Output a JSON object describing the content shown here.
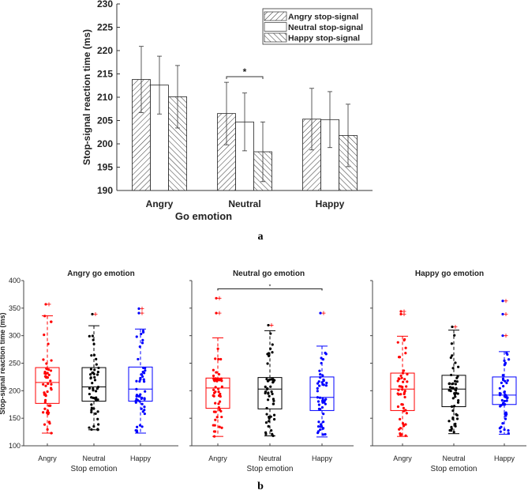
{
  "chart_data": [
    {
      "type": "bar",
      "label": "a",
      "xlabel": "Go emotion",
      "ylabel": "Stop-signal reaction time (ms)",
      "ylim": [
        190,
        230
      ],
      "yticks": [
        190,
        195,
        200,
        205,
        210,
        215,
        220,
        225,
        230
      ],
      "categories": [
        "Angry",
        "Neutral",
        "Happy"
      ],
      "legend_position": "top-right",
      "series": [
        {
          "name": "Angry stop-signal",
          "pattern": "hatch-forward",
          "values": [
            213.8,
            206.5,
            205.3
          ],
          "errors": [
            7.1,
            6.7,
            6.6
          ]
        },
        {
          "name": "Neutral stop-signal",
          "pattern": "plain",
          "values": [
            212.6,
            204.7,
            205.2
          ],
          "errors": [
            6.2,
            6.2,
            6.0
          ]
        },
        {
          "name": "Happy stop-signal",
          "pattern": "hatch-back",
          "values": [
            210.1,
            198.3,
            201.8
          ],
          "errors": [
            6.7,
            6.4,
            6.7
          ]
        }
      ],
      "annotations": [
        {
          "text": "*",
          "between": [
            "Neutral: Angry stop-signal",
            "Neutral: Happy stop-signal"
          ]
        }
      ]
    },
    {
      "type": "box",
      "label": "b",
      "ylabel": "Stop-signal reaction time (ms)",
      "xlabel": "Stop emotion",
      "ylim": [
        100,
        400
      ],
      "yticks": [
        100,
        150,
        200,
        250,
        300,
        350,
        400
      ],
      "categories": [
        "Angry",
        "Neutral",
        "Happy"
      ],
      "colors": [
        "#ff0000",
        "#000000",
        "#0000ff"
      ],
      "panels": [
        {
          "title": "Angry go emotion",
          "boxes": [
            {
              "min": 123,
              "q1": 177,
              "median": 215,
              "q3": 242,
              "max": 336,
              "outliers": [
                357
              ]
            },
            {
              "min": 129,
              "q1": 181,
              "median": 207,
              "q3": 242,
              "max": 318,
              "outliers": [
                339
              ]
            },
            {
              "min": 123,
              "q1": 181,
              "median": 203,
              "q3": 243,
              "max": 312,
              "outliers": [
                341,
                349
              ]
            }
          ]
        },
        {
          "title": "Neutral go emotion",
          "significance": {
            "text": "*",
            "between": [
              "Angry",
              "Happy"
            ]
          },
          "boxes": [
            {
              "min": 117,
              "q1": 168,
              "median": 205,
              "q3": 223,
              "max": 296,
              "outliers": [
                341,
                368
              ]
            },
            {
              "min": 118,
              "q1": 167,
              "median": 203,
              "q3": 224,
              "max": 309,
              "outliers": [
                319
              ]
            },
            {
              "min": 116,
              "q1": 164,
              "median": 188,
              "q3": 225,
              "max": 281,
              "outliers": [
                341
              ]
            }
          ]
        },
        {
          "title": "Happy go emotion",
          "boxes": [
            {
              "min": 117,
              "q1": 164,
              "median": 203,
              "q3": 232,
              "max": 299,
              "outliers": [
                339,
                344
              ]
            },
            {
              "min": 122,
              "q1": 171,
              "median": 203,
              "q3": 228,
              "max": 310,
              "outliers": [
                316
              ]
            },
            {
              "min": 121,
              "q1": 175,
              "median": 192,
              "q3": 225,
              "max": 271,
              "outliers": [
                300,
                339,
                363
              ]
            }
          ]
        }
      ]
    }
  ]
}
